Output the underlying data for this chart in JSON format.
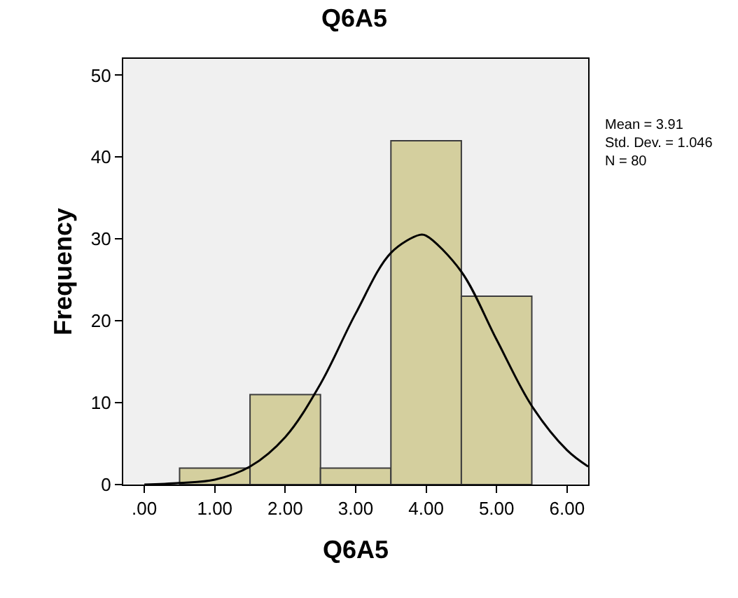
{
  "chart_data": {
    "type": "histogram",
    "title": "Q6A5",
    "xlabel": "Q6A5",
    "ylabel": "Frequency",
    "bins": [
      0.5,
      1.5,
      2.5,
      3.5,
      4.5,
      5.5
    ],
    "values": [
      2,
      11,
      2,
      42,
      23
    ],
    "color": "#d4cf9e",
    "series": [
      {
        "type": "line",
        "color": "#000000",
        "x": [
          0,
          0.5,
          1,
          1.5,
          2,
          2.5,
          3,
          3.5,
          3.91,
          4,
          4.5,
          5,
          5.5,
          6,
          6.3
        ],
        "values": [
          0,
          0.2,
          0.6,
          2.2,
          5.8,
          12.3,
          20.9,
          28.3,
          30.5,
          30.4,
          26,
          17.7,
          9.6,
          4.2,
          2.2
        ]
      }
    ],
    "xlim": [
      -0.3,
      6.3
    ],
    "xticks": [
      {
        "value": 0,
        "label": ".00"
      },
      {
        "value": 1,
        "label": "1.00"
      },
      {
        "value": 2,
        "label": "2.00"
      },
      {
        "value": 3,
        "label": "3.00"
      },
      {
        "value": 4,
        "label": "4.00"
      },
      {
        "value": 5,
        "label": "5.00"
      },
      {
        "value": 6,
        "label": "6.00"
      }
    ],
    "ylim": [
      0,
      52
    ],
    "yticks": [
      0,
      10,
      20,
      30,
      40,
      50
    ],
    "grid": false,
    "annotations": [
      "Mean = 3.91",
      "Std. Dev. = 1.046",
      "N = 80"
    ]
  }
}
